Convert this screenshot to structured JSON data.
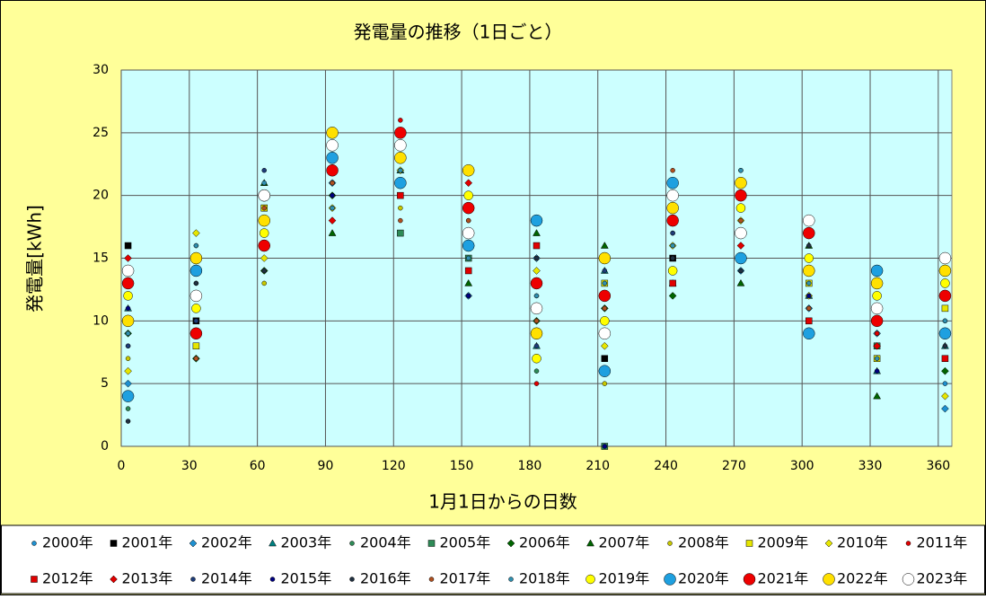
{
  "chart_data": {
    "type": "scatter",
    "title": "発電量の推移（1日ごと）",
    "x_label": "1月1日からの日数",
    "y_label": "発電量[kWh]",
    "xlim": [
      0,
      366
    ],
    "xticks": [
      0,
      30,
      60,
      90,
      120,
      150,
      180,
      210,
      240,
      270,
      300,
      330,
      360
    ],
    "ylim": [
      0,
      30
    ],
    "yticks": [
      0,
      5,
      10,
      15,
      20,
      25,
      30
    ],
    "grid": true,
    "x": [
      3,
      33,
      63,
      93,
      123,
      153,
      183,
      213,
      243,
      273,
      303,
      333,
      363
    ],
    "series": [
      {
        "name": "2000年",
        "color": "#1e90d0",
        "marker": "dot",
        "values": [
          8,
          12,
          15,
          18,
          20,
          14,
          9,
          12,
          16,
          18,
          10,
          7,
          5
        ]
      },
      {
        "name": "2001年",
        "color": "#000000",
        "marker": "square",
        "values": [
          16,
          10,
          19,
          22,
          24,
          19,
          11,
          7,
          15,
          20,
          17,
          13,
          15
        ]
      },
      {
        "name": "2002年",
        "color": "#1e90d0",
        "marker": "diamond",
        "values": [
          5,
          14,
          17,
          21,
          23,
          12,
          15,
          10,
          18,
          14,
          11,
          9,
          3
        ]
      },
      {
        "name": "2003年",
        "color": "#008080",
        "marker": "triangle",
        "values": [
          11,
          9,
          20,
          24,
          22,
          17,
          8,
          14,
          13,
          19,
          12,
          6,
          8
        ]
      },
      {
        "name": "2004年",
        "color": "#2e8b57",
        "marker": "dot",
        "values": [
          3,
          13,
          16,
          19,
          25,
          21,
          6,
          9,
          17,
          16,
          14,
          10,
          12
        ]
      },
      {
        "name": "2005年",
        "color": "#2e8b57",
        "marker": "square",
        "values": [
          12,
          15,
          18,
          23,
          17,
          15,
          13,
          0,
          19,
          21,
          9,
          8,
          14
        ]
      },
      {
        "name": "2006年",
        "color": "#006400",
        "marker": "diamond",
        "values": [
          9,
          7,
          14,
          20,
          21,
          20,
          10,
          11,
          12,
          17,
          15,
          11,
          6
        ]
      },
      {
        "name": "2007年",
        "color": "#006400",
        "marker": "triangle",
        "values": [
          14,
          11,
          21,
          17,
          24,
          13,
          17,
          16,
          20,
          13,
          16,
          4,
          9
        ]
      },
      {
        "name": "2008年",
        "color": "#c8c800",
        "marker": "dot",
        "values": [
          7,
          16,
          13,
          22,
          19,
          18,
          12,
          5,
          14,
          22,
          11,
          13,
          10
        ]
      },
      {
        "name": "2009年",
        "color": "#e6e600",
        "marker": "square",
        "values": [
          10,
          8,
          19,
          25,
          23,
          16,
          9,
          13,
          21,
          15,
          13,
          7,
          11
        ]
      },
      {
        "name": "2010年",
        "color": "#e6e600",
        "marker": "diamond",
        "values": [
          6,
          17,
          15,
          19,
          22,
          22,
          14,
          8,
          16,
          18,
          12,
          12,
          4
        ]
      },
      {
        "name": "2011年",
        "color": "#e00000",
        "marker": "dot",
        "values": [
          13,
          12,
          20,
          21,
          26,
          19,
          5,
          15,
          18,
          19,
          17,
          9,
          13
        ]
      },
      {
        "name": "2012年",
        "color": "#e00000",
        "marker": "square",
        "values": [
          4,
          9,
          17,
          23,
          20,
          14,
          16,
          10,
          13,
          20,
          10,
          14,
          7
        ]
      },
      {
        "name": "2013年",
        "color": "#e00000",
        "marker": "diamond",
        "values": [
          15,
          14,
          16,
          18,
          24,
          21,
          11,
          12,
          19,
          16,
          15,
          8,
          12
        ]
      },
      {
        "name": "2014年",
        "color": "#1e3c78",
        "marker": "dot",
        "values": [
          8,
          10,
          22,
          24,
          21,
          17,
          8,
          14,
          17,
          21,
          14,
          11,
          9
        ]
      },
      {
        "name": "2015年",
        "color": "#000080",
        "marker": "dot",
        "values": [
          11,
          15,
          18,
          20,
          25,
          12,
          13,
          0,
          20,
          17,
          12,
          6,
          14
        ]
      },
      {
        "name": "2016年",
        "color": "#203040",
        "marker": "dot",
        "values": [
          2,
          13,
          14,
          22,
          23,
          20,
          15,
          9,
          15,
          14,
          16,
          10,
          8
        ]
      },
      {
        "name": "2017年",
        "color": "#b05020",
        "marker": "dot",
        "values": [
          14,
          7,
          19,
          21,
          18,
          18,
          10,
          11,
          22,
          18,
          11,
          13,
          15
        ]
      },
      {
        "name": "2018年",
        "color": "#3090b0",
        "marker": "dot",
        "values": [
          9,
          16,
          21,
          19,
          22,
          15,
          12,
          13,
          16,
          22,
          13,
          7,
          10
        ]
      },
      {
        "name": "2019年",
        "color": "#ffff00",
        "marker": "circle",
        "values": [
          12,
          11,
          17,
          24,
          24,
          20,
          7,
          10,
          14,
          19,
          15,
          12,
          13
        ]
      },
      {
        "name": "2020年",
        "color": "#1ea0e0",
        "marker": "circle-large",
        "values": [
          4,
          14,
          20,
          23,
          21,
          16,
          18,
          6,
          21,
          15,
          9,
          14,
          9
        ]
      },
      {
        "name": "2021年",
        "color": "#ee0000",
        "marker": "circle-large",
        "values": [
          13,
          9,
          16,
          22,
          25,
          19,
          13,
          12,
          18,
          20,
          17,
          10,
          12
        ]
      },
      {
        "name": "2022年",
        "color": "#ffe000",
        "marker": "circle-large",
        "values": [
          10,
          15,
          18,
          25,
          23,
          22,
          9,
          15,
          19,
          21,
          14,
          13,
          14
        ]
      },
      {
        "name": "2023年",
        "color": "#ffffff",
        "marker": "circle-large",
        "values": [
          14,
          12,
          20,
          24,
          24,
          17,
          11,
          9,
          20,
          17,
          18,
          11,
          15
        ]
      }
    ]
  }
}
